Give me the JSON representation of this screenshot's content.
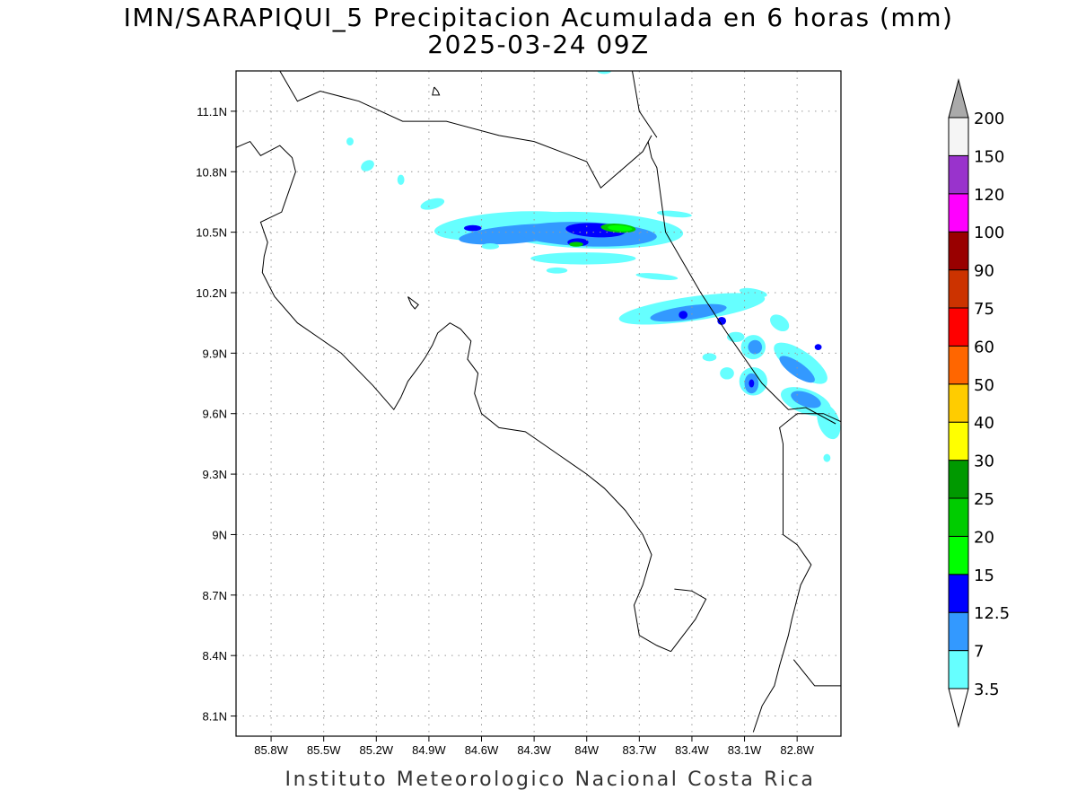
{
  "title": {
    "line1": "IMN/SARAPIQUI_5 Precipitacion Acumulada en 6 horas (mm)",
    "line2": "2025-03-24 09Z"
  },
  "footer": "Instituto Meteorologico Nacional Costa Rica",
  "map": {
    "lon_range": [
      -86.0,
      -82.55
    ],
    "lat_range": [
      8.0,
      11.3
    ],
    "x_ticks": [
      {
        "value": -85.8,
        "label": "85.8W"
      },
      {
        "value": -85.5,
        "label": "85.5W"
      },
      {
        "value": -85.2,
        "label": "85.2W"
      },
      {
        "value": -84.9,
        "label": "84.9W"
      },
      {
        "value": -84.6,
        "label": "84.6W"
      },
      {
        "value": -84.3,
        "label": "84.3W"
      },
      {
        "value": -84.0,
        "label": "84W"
      },
      {
        "value": -83.7,
        "label": "83.7W"
      },
      {
        "value": -83.4,
        "label": "83.4W"
      },
      {
        "value": -83.1,
        "label": "83.1W"
      },
      {
        "value": -82.8,
        "label": "82.8W"
      }
    ],
    "y_ticks": [
      {
        "value": 11.1,
        "label": "11.1N"
      },
      {
        "value": 10.8,
        "label": "10.8N"
      },
      {
        "value": 10.5,
        "label": "10.5N"
      },
      {
        "value": 10.2,
        "label": "10.2N"
      },
      {
        "value": 9.9,
        "label": "9.9N"
      },
      {
        "value": 9.6,
        "label": "9.6N"
      },
      {
        "value": 9.3,
        "label": "9.3N"
      },
      {
        "value": 9.0,
        "label": "9N"
      },
      {
        "value": 8.7,
        "label": "8.7N"
      },
      {
        "value": 8.4,
        "label": "8.4N"
      },
      {
        "value": 8.1,
        "label": "8.1N"
      }
    ]
  },
  "colorbar": {
    "colors": [
      "#66ffff",
      "#3399ff",
      "#0000ff",
      "#00ff00",
      "#00cc00",
      "#009900",
      "#ffff00",
      "#ffcc00",
      "#ff6600",
      "#ff0000",
      "#cc3300",
      "#990000",
      "#ff00ff",
      "#9933cc",
      "#f5f5f5"
    ],
    "top_color": "#aaaaaa",
    "bottom_color": "#ffffff",
    "labels": [
      "3.5",
      "7",
      "12.5",
      "15",
      "20",
      "25",
      "30",
      "40",
      "50",
      "60",
      "75",
      "90",
      "100",
      "120",
      "150",
      "200"
    ]
  },
  "precip_cells": [
    {
      "lon": -84.45,
      "lat": 10.53,
      "rx_deg": 0.42,
      "ry_deg": 0.07,
      "rot": 4,
      "color": "#66ffff"
    },
    {
      "lon": -84.0,
      "lat": 10.51,
      "rx_deg": 0.55,
      "ry_deg": 0.09,
      "rot": -2,
      "color": "#66ffff"
    },
    {
      "lon": -84.4,
      "lat": 10.49,
      "rx_deg": 0.33,
      "ry_deg": 0.045,
      "rot": 5,
      "color": "#3399ff"
    },
    {
      "lon": -84.0,
      "lat": 10.49,
      "rx_deg": 0.4,
      "ry_deg": 0.06,
      "rot": -2,
      "color": "#3399ff"
    },
    {
      "lon": -84.65,
      "lat": 10.52,
      "rx_deg": 0.05,
      "ry_deg": 0.015,
      "rot": 0,
      "color": "#0000ff"
    },
    {
      "lon": -83.95,
      "lat": 10.51,
      "rx_deg": 0.17,
      "ry_deg": 0.035,
      "rot": -3,
      "color": "#0000ff"
    },
    {
      "lon": -84.05,
      "lat": 10.45,
      "rx_deg": 0.06,
      "ry_deg": 0.02,
      "rot": 0,
      "color": "#0000ff"
    },
    {
      "lon": -83.82,
      "lat": 10.52,
      "rx_deg": 0.1,
      "ry_deg": 0.022,
      "rot": -4,
      "color": "#00cc00"
    },
    {
      "lon": -83.81,
      "lat": 10.52,
      "rx_deg": 0.07,
      "ry_deg": 0.014,
      "rot": -4,
      "color": "#00ff00"
    },
    {
      "lon": -84.06,
      "lat": 10.44,
      "rx_deg": 0.04,
      "ry_deg": 0.012,
      "rot": 0,
      "color": "#00cc00"
    },
    {
      "lon": -84.02,
      "lat": 10.37,
      "rx_deg": 0.3,
      "ry_deg": 0.03,
      "rot": 0,
      "color": "#66ffff"
    },
    {
      "lon": -83.6,
      "lat": 10.28,
      "rx_deg": 0.12,
      "ry_deg": 0.015,
      "rot": -5,
      "color": "#66ffff"
    },
    {
      "lon": -84.17,
      "lat": 10.31,
      "rx_deg": 0.06,
      "ry_deg": 0.015,
      "rot": 0,
      "color": "#66ffff"
    },
    {
      "lon": -84.55,
      "lat": 10.43,
      "rx_deg": 0.05,
      "ry_deg": 0.015,
      "rot": 0,
      "color": "#66ffff"
    },
    {
      "lon": -84.88,
      "lat": 10.64,
      "rx_deg": 0.07,
      "ry_deg": 0.025,
      "rot": 15,
      "color": "#66ffff"
    },
    {
      "lon": -83.5,
      "lat": 10.59,
      "rx_deg": 0.1,
      "ry_deg": 0.015,
      "rot": -5,
      "color": "#66ffff"
    },
    {
      "lon": -83.4,
      "lat": 10.12,
      "rx_deg": 0.42,
      "ry_deg": 0.06,
      "rot": 8,
      "color": "#66ffff"
    },
    {
      "lon": -83.42,
      "lat": 10.1,
      "rx_deg": 0.22,
      "ry_deg": 0.035,
      "rot": 8,
      "color": "#3399ff"
    },
    {
      "lon": -83.45,
      "lat": 10.09,
      "rx_deg": 0.025,
      "ry_deg": 0.02,
      "rot": 0,
      "color": "#0000ff"
    },
    {
      "lon": -83.23,
      "lat": 10.06,
      "rx_deg": 0.025,
      "ry_deg": 0.02,
      "rot": 0,
      "color": "#0000ff"
    },
    {
      "lon": -83.05,
      "lat": 10.2,
      "rx_deg": 0.08,
      "ry_deg": 0.02,
      "rot": -10,
      "color": "#66ffff"
    },
    {
      "lon": -83.15,
      "lat": 9.98,
      "rx_deg": 0.05,
      "ry_deg": 0.025,
      "rot": 0,
      "color": "#66ffff"
    },
    {
      "lon": -83.3,
      "lat": 9.88,
      "rx_deg": 0.04,
      "ry_deg": 0.02,
      "rot": 0,
      "color": "#66ffff"
    },
    {
      "lon": -83.05,
      "lat": 9.93,
      "rx_deg": 0.07,
      "ry_deg": 0.06,
      "rot": 30,
      "color": "#66ffff"
    },
    {
      "lon": -83.04,
      "lat": 9.93,
      "rx_deg": 0.04,
      "ry_deg": 0.035,
      "rot": 30,
      "color": "#3399ff"
    },
    {
      "lon": -82.9,
      "lat": 10.05,
      "rx_deg": 0.06,
      "ry_deg": 0.035,
      "rot": -35,
      "color": "#66ffff"
    },
    {
      "lon": -83.2,
      "lat": 9.8,
      "rx_deg": 0.04,
      "ry_deg": 0.03,
      "rot": 0,
      "color": "#66ffff"
    },
    {
      "lon": -83.05,
      "lat": 9.76,
      "rx_deg": 0.08,
      "ry_deg": 0.07,
      "rot": 0,
      "color": "#66ffff"
    },
    {
      "lon": -83.06,
      "lat": 9.75,
      "rx_deg": 0.04,
      "ry_deg": 0.05,
      "rot": 0,
      "color": "#3399ff"
    },
    {
      "lon": -83.06,
      "lat": 9.75,
      "rx_deg": 0.015,
      "ry_deg": 0.02,
      "rot": 0,
      "color": "#0000ff"
    },
    {
      "lon": -82.78,
      "lat": 9.85,
      "rx_deg": 0.18,
      "ry_deg": 0.06,
      "rot": -35,
      "color": "#66ffff"
    },
    {
      "lon": -82.8,
      "lat": 9.82,
      "rx_deg": 0.12,
      "ry_deg": 0.035,
      "rot": -35,
      "color": "#3399ff"
    },
    {
      "lon": -82.68,
      "lat": 9.93,
      "rx_deg": 0.02,
      "ry_deg": 0.015,
      "rot": 0,
      "color": "#0000ff"
    },
    {
      "lon": -82.75,
      "lat": 9.66,
      "rx_deg": 0.15,
      "ry_deg": 0.06,
      "rot": -20,
      "color": "#66ffff"
    },
    {
      "lon": -82.75,
      "lat": 9.67,
      "rx_deg": 0.09,
      "ry_deg": 0.035,
      "rot": -20,
      "color": "#3399ff"
    },
    {
      "lon": -82.62,
      "lat": 9.56,
      "rx_deg": 0.06,
      "ry_deg": 0.09,
      "rot": 20,
      "color": "#66ffff"
    },
    {
      "lon": -82.63,
      "lat": 9.38,
      "rx_deg": 0.02,
      "ry_deg": 0.02,
      "rot": 0,
      "color": "#66ffff"
    },
    {
      "lon": -83.9,
      "lat": 11.3,
      "rx_deg": 0.04,
      "ry_deg": 0.015,
      "rot": 0,
      "color": "#66ffff"
    },
    {
      "lon": -85.35,
      "lat": 10.95,
      "rx_deg": 0.02,
      "ry_deg": 0.02,
      "rot": 0,
      "color": "#66ffff"
    },
    {
      "lon": -85.25,
      "lat": 10.83,
      "rx_deg": 0.04,
      "ry_deg": 0.025,
      "rot": 30,
      "color": "#66ffff"
    },
    {
      "lon": -85.06,
      "lat": 10.76,
      "rx_deg": 0.02,
      "ry_deg": 0.025,
      "rot": 0,
      "color": "#66ffff"
    }
  ],
  "coast_lines": [
    [
      [
        -86.0,
        10.92
      ],
      [
        -85.92,
        10.95
      ],
      [
        -85.86,
        10.88
      ],
      [
        -85.75,
        10.93
      ],
      [
        -85.68,
        10.87
      ],
      [
        -85.66,
        10.8
      ],
      [
        -85.7,
        10.7
      ],
      [
        -85.74,
        10.6
      ],
      [
        -85.86,
        10.55
      ],
      [
        -85.82,
        10.45
      ],
      [
        -85.84,
        10.38
      ],
      [
        -85.85,
        10.3
      ],
      [
        -85.78,
        10.18
      ],
      [
        -85.65,
        10.05
      ],
      [
        -85.5,
        9.96
      ],
      [
        -85.4,
        9.9
      ],
      [
        -85.22,
        9.74
      ],
      [
        -85.1,
        9.62
      ],
      [
        -85.06,
        9.68
      ],
      [
        -85.02,
        9.76
      ],
      [
        -84.96,
        9.83
      ],
      [
        -84.92,
        9.88
      ],
      [
        -84.88,
        9.94
      ],
      [
        -84.85,
        10.0
      ],
      [
        -84.78,
        10.05
      ],
      [
        -84.72,
        10.02
      ],
      [
        -84.66,
        9.96
      ],
      [
        -84.68,
        9.87
      ],
      [
        -84.62,
        9.8
      ],
      [
        -84.64,
        9.7
      ],
      [
        -84.6,
        9.6
      ],
      [
        -84.5,
        9.53
      ],
      [
        -84.35,
        9.51
      ],
      [
        -84.25,
        9.45
      ],
      [
        -84.15,
        9.39
      ],
      [
        -84.0,
        9.3
      ],
      [
        -83.9,
        9.23
      ],
      [
        -83.78,
        9.12
      ],
      [
        -83.68,
        9.0
      ],
      [
        -83.63,
        8.9
      ],
      [
        -83.68,
        8.75
      ],
      [
        -83.73,
        8.65
      ],
      [
        -83.7,
        8.5
      ],
      [
        -83.6,
        8.45
      ],
      [
        -83.52,
        8.42
      ]
    ],
    [
      [
        -83.52,
        8.42
      ],
      [
        -83.45,
        8.5
      ],
      [
        -83.38,
        8.58
      ],
      [
        -83.32,
        8.68
      ],
      [
        -83.4,
        8.72
      ],
      [
        -83.5,
        8.73
      ]
    ],
    [
      [
        -83.05,
        8.02
      ],
      [
        -83.0,
        8.15
      ],
      [
        -82.93,
        8.25
      ],
      [
        -82.9,
        8.35
      ],
      [
        -82.85,
        8.5
      ],
      [
        -82.83,
        8.58
      ],
      [
        -82.78,
        8.75
      ],
      [
        -82.72,
        8.85
      ],
      [
        -82.8,
        8.95
      ],
      [
        -82.88,
        9.0
      ],
      [
        -82.88,
        9.2
      ],
      [
        -82.88,
        9.45
      ],
      [
        -82.9,
        9.53
      ],
      [
        -82.8,
        9.6
      ],
      [
        -82.65,
        9.6
      ],
      [
        -82.55,
        9.56
      ]
    ],
    [
      [
        -82.82,
        8.38
      ],
      [
        -82.7,
        8.25
      ],
      [
        -82.55,
        8.25
      ]
    ],
    [
      [
        -83.6,
        10.97
      ],
      [
        -83.7,
        11.1
      ],
      [
        -83.74,
        11.3
      ]
    ],
    [
      [
        -83.65,
        10.95
      ],
      [
        -83.63,
        10.87
      ],
      [
        -83.6,
        10.82
      ],
      [
        -83.55,
        10.5
      ],
      [
        -83.35,
        10.2
      ],
      [
        -83.2,
        10.0
      ],
      [
        -83.0,
        9.75
      ],
      [
        -82.85,
        9.62
      ],
      [
        -82.75,
        9.63
      ],
      [
        -82.58,
        9.55
      ]
    ],
    [
      [
        -85.75,
        11.3
      ],
      [
        -85.65,
        11.15
      ],
      [
        -85.52,
        11.2
      ],
      [
        -85.3,
        11.15
      ],
      [
        -85.05,
        11.05
      ],
      [
        -84.8,
        11.05
      ],
      [
        -84.5,
        10.98
      ],
      [
        -84.3,
        10.95
      ],
      [
        -84.0,
        10.85
      ],
      [
        -83.92,
        10.72
      ],
      [
        -83.68,
        10.9
      ],
      [
        -83.63,
        10.98
      ]
    ],
    [
      [
        -84.87,
        11.22
      ],
      [
        -84.85,
        11.2
      ],
      [
        -84.84,
        11.18
      ],
      [
        -84.88,
        11.18
      ],
      [
        -84.87,
        11.22
      ]
    ],
    [
      [
        -85.02,
        10.18
      ],
      [
        -85.0,
        10.14
      ],
      [
        -84.98,
        10.12
      ],
      [
        -84.96,
        10.14
      ],
      [
        -85.02,
        10.18
      ]
    ]
  ]
}
